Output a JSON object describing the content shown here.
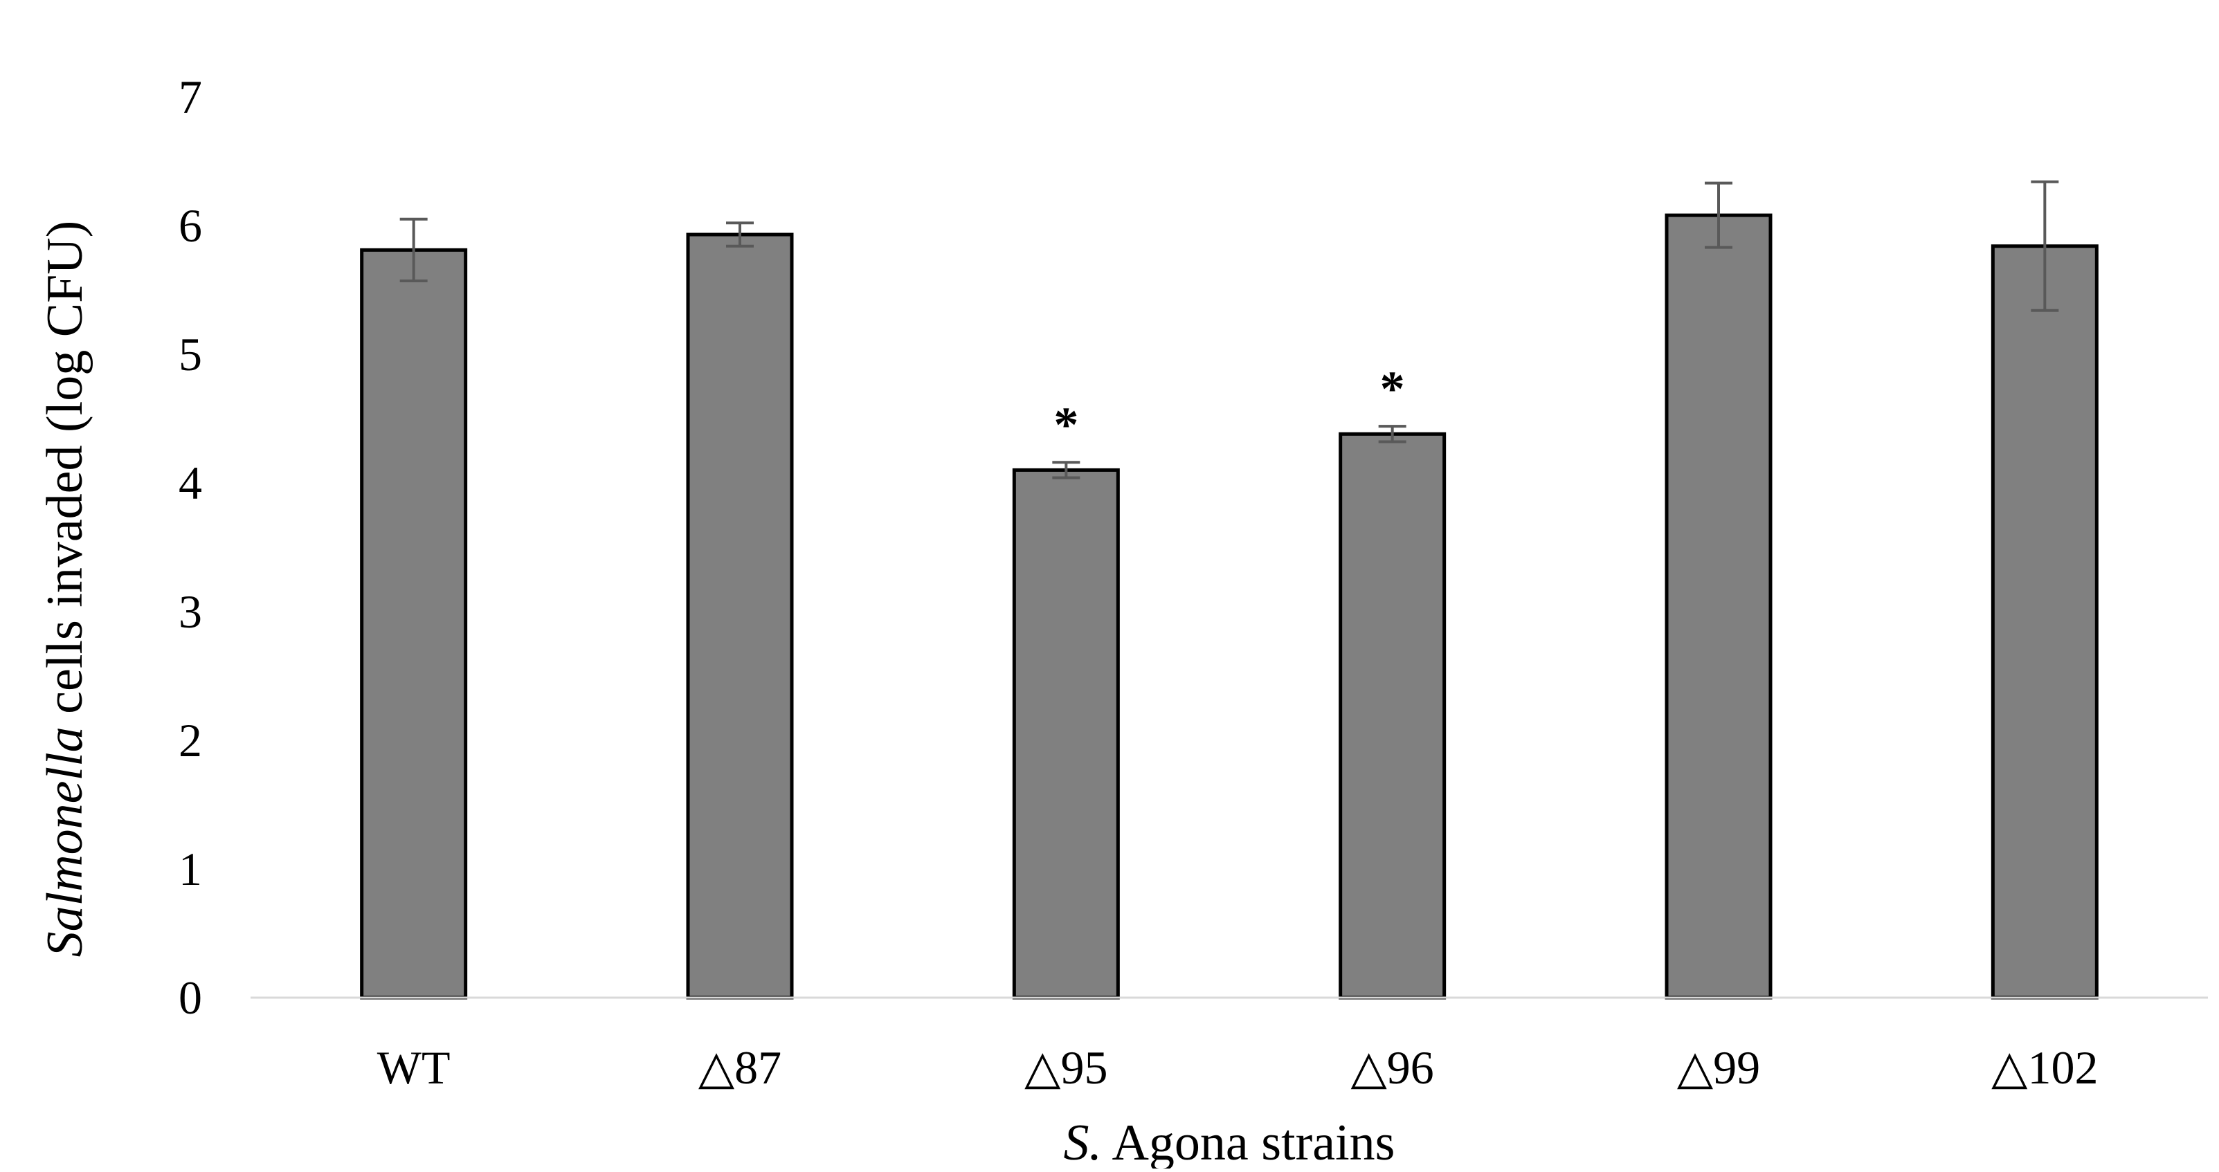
{
  "chart_data": {
    "type": "bar",
    "title": "",
    "xlabel": {
      "italic": "S.",
      "normal": " Agona strains"
    },
    "ylabel": {
      "italic": "Salmonella",
      "normal": " cells invaded (log CFU)"
    },
    "categories": [
      "WT",
      "△87",
      "△95",
      "△96",
      "△99",
      "△102"
    ],
    "values": [
      5.81,
      5.93,
      4.1,
      4.38,
      6.08,
      5.84
    ],
    "error": [
      0.24,
      0.09,
      0.06,
      0.06,
      0.25,
      0.5
    ],
    "significance": [
      "",
      "",
      "*",
      "*",
      "",
      ""
    ],
    "ylim": [
      0,
      7
    ],
    "yticks": [
      "0",
      "1",
      "2",
      "3",
      "4",
      "5",
      "6",
      "7"
    ],
    "grid": false,
    "legend": "none",
    "colors": {
      "bar_fill": "#808080",
      "bar_stroke": "#000000",
      "error_bar": "#595959",
      "axis_line": "#d9d9d9"
    }
  }
}
